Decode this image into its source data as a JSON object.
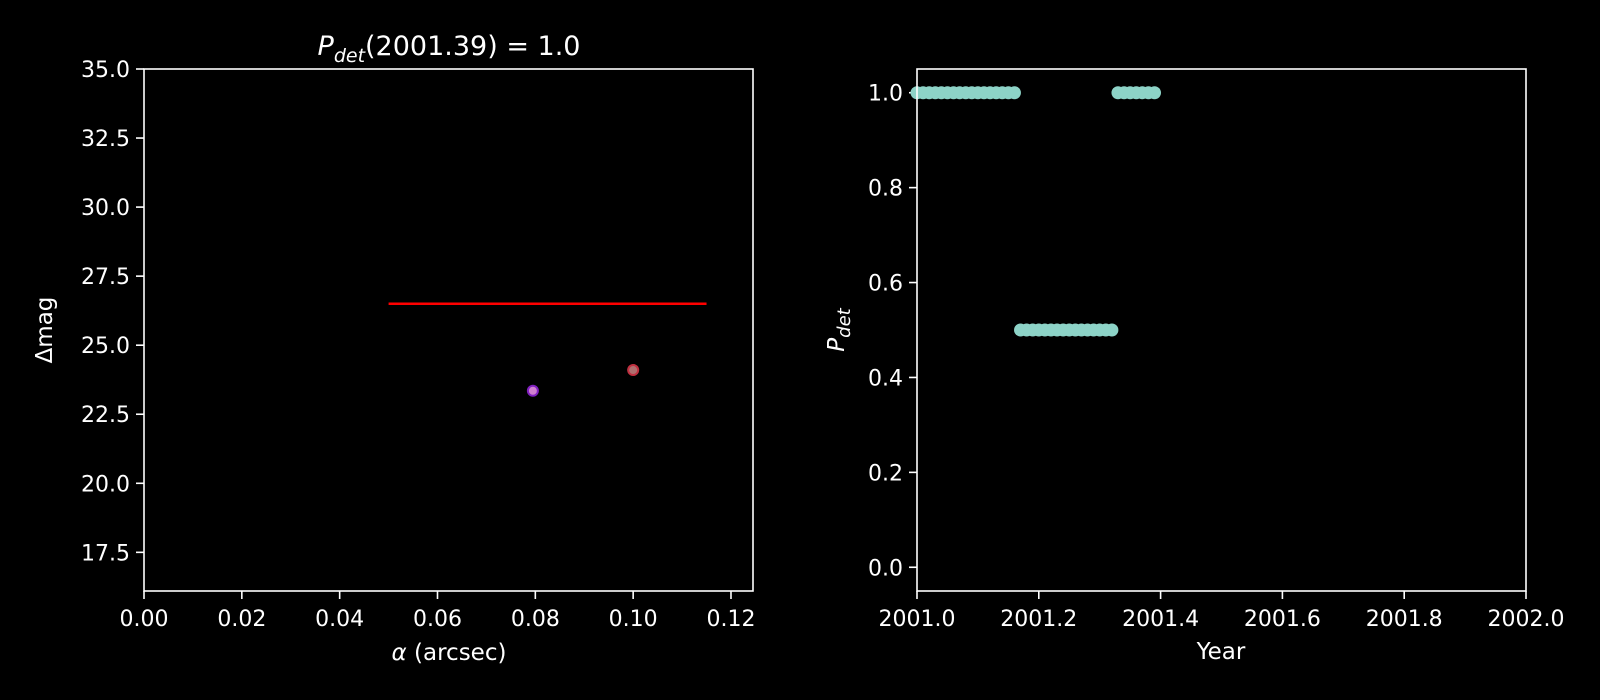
{
  "chart_data": [
    {
      "type": "scatter",
      "title": {
        "main": "P",
        "sub": "det",
        "rest": "(2001.39) = 1.0"
      },
      "xlabel": {
        "symbol": "α",
        "rest": " (arcsec)"
      },
      "ylabel": "Δmag",
      "xlim": [
        0,
        0.1245
      ],
      "ylim": [
        16.1,
        35
      ],
      "xticks": [
        "0.00",
        "0.02",
        "0.04",
        "0.06",
        "0.08",
        "0.10",
        "0.12"
      ],
      "yticks": [
        "17.5",
        "20.0",
        "22.5",
        "25.0",
        "27.5",
        "30.0",
        "32.5",
        "35.0"
      ],
      "limit_line": {
        "x": [
          0.05,
          0.115
        ],
        "y": 26.5,
        "color": "#ff0000"
      },
      "points": [
        {
          "x": 0.0795,
          "y": 23.35,
          "fill": "#d080d0",
          "stroke": "#8020c0"
        },
        {
          "x": 0.1,
          "y": 24.1,
          "fill": "#b07070",
          "stroke": "#c03040"
        }
      ]
    },
    {
      "type": "scatter",
      "xlabel": "Year",
      "ylabel": {
        "main": "P",
        "sub": "det"
      },
      "xlim": [
        2001.0,
        2002.0
      ],
      "ylim": [
        -0.05,
        1.05
      ],
      "xticks": [
        "2001.0",
        "2001.2",
        "2001.4",
        "2001.6",
        "2001.8",
        "2002.0"
      ],
      "yticks": [
        "0.0",
        "0.2",
        "0.4",
        "0.6",
        "0.8",
        "1.0"
      ],
      "marker_color": "#8dd3c7",
      "series": [
        {
          "x": [
            2001.0,
            2001.01,
            2001.02,
            2001.03,
            2001.04,
            2001.05,
            2001.06,
            2001.07,
            2001.08,
            2001.09,
            2001.1,
            2001.11,
            2001.12,
            2001.13,
            2001.14,
            2001.15,
            2001.16,
            2001.17,
            2001.18,
            2001.19,
            2001.2,
            2001.21,
            2001.22,
            2001.23,
            2001.24,
            2001.25,
            2001.26,
            2001.27,
            2001.28,
            2001.29,
            2001.3,
            2001.31,
            2001.32,
            2001.33,
            2001.34,
            2001.35,
            2001.36,
            2001.37,
            2001.38,
            2001.39
          ],
          "y": [
            1.0,
            1.0,
            1.0,
            1.0,
            1.0,
            1.0,
            1.0,
            1.0,
            1.0,
            1.0,
            1.0,
            1.0,
            1.0,
            1.0,
            1.0,
            1.0,
            1.0,
            0.5,
            0.5,
            0.5,
            0.5,
            0.5,
            0.5,
            0.5,
            0.5,
            0.5,
            0.5,
            0.5,
            0.5,
            0.5,
            0.5,
            0.5,
            0.5,
            1.0,
            1.0,
            1.0,
            1.0,
            1.0,
            1.0,
            1.0
          ]
        }
      ]
    }
  ]
}
